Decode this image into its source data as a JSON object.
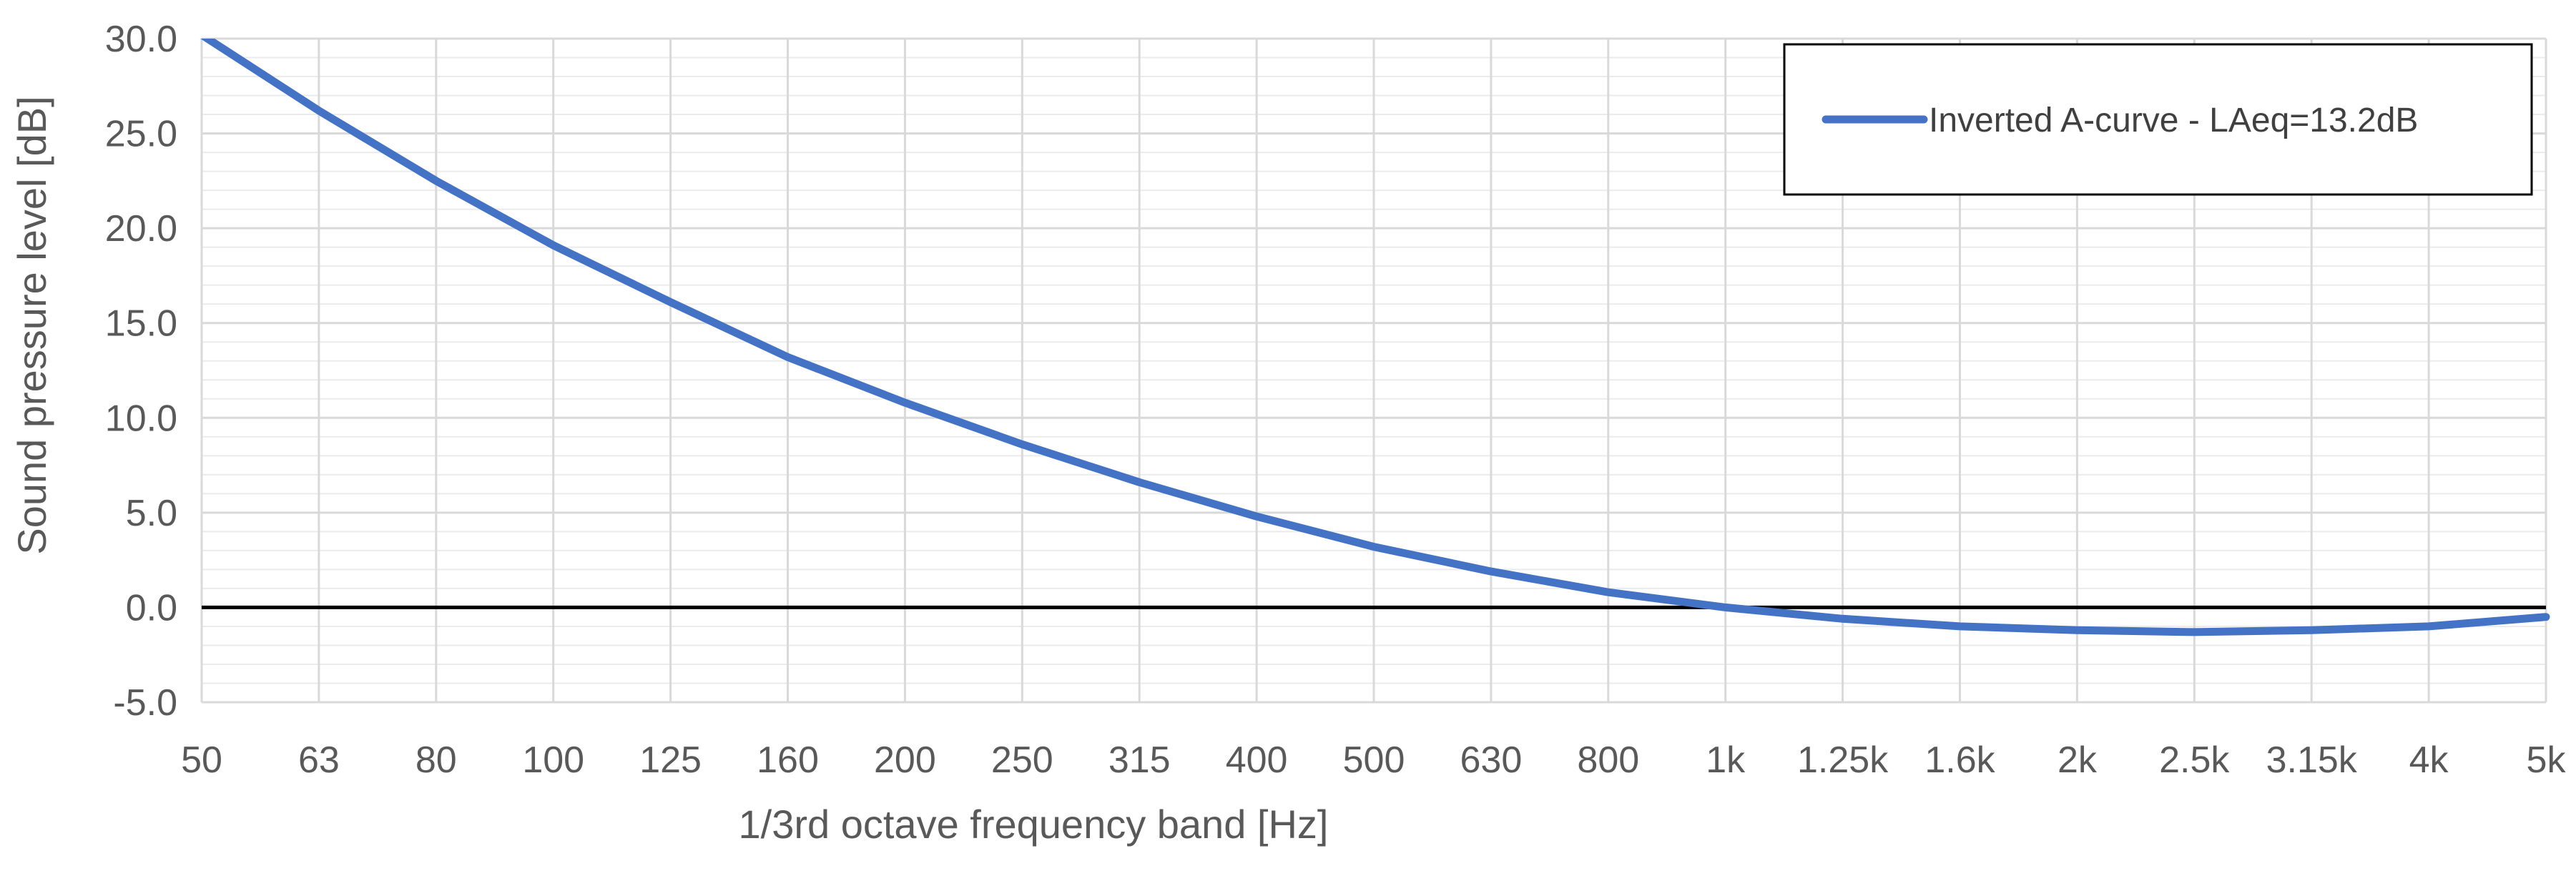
{
  "chart_data": {
    "type": "line",
    "title": "",
    "xlabel": "1/3rd octave frequency band [Hz]",
    "ylabel": "Sound pressure level [dB]",
    "categories": [
      "50",
      "63",
      "80",
      "100",
      "125",
      "160",
      "200",
      "250",
      "315",
      "400",
      "500",
      "630",
      "800",
      "1k",
      "1.25k",
      "1.6k",
      "2k",
      "2.5k",
      "3.15k",
      "4k",
      "5k"
    ],
    "ylim": [
      -5.0,
      30.0
    ],
    "yticks": [
      "-5.0",
      "0.0",
      "5.0",
      "10.0",
      "15.0",
      "20.0",
      "25.0",
      "30.0"
    ],
    "ytick_values": [
      -5,
      0,
      5,
      10,
      15,
      20,
      25,
      30
    ],
    "grid": true,
    "legend_position": "top-right",
    "reference_line": 0,
    "series": [
      {
        "name": "Inverted A-curve - LAeq=13.2dB",
        "color": "#4472C4",
        "values": [
          30.2,
          26.2,
          22.5,
          19.1,
          16.1,
          13.2,
          10.8,
          8.6,
          6.6,
          4.8,
          3.2,
          1.9,
          0.8,
          0.0,
          -0.6,
          -1.0,
          -1.2,
          -1.3,
          -1.2,
          -1.0,
          -0.5
        ]
      }
    ]
  }
}
